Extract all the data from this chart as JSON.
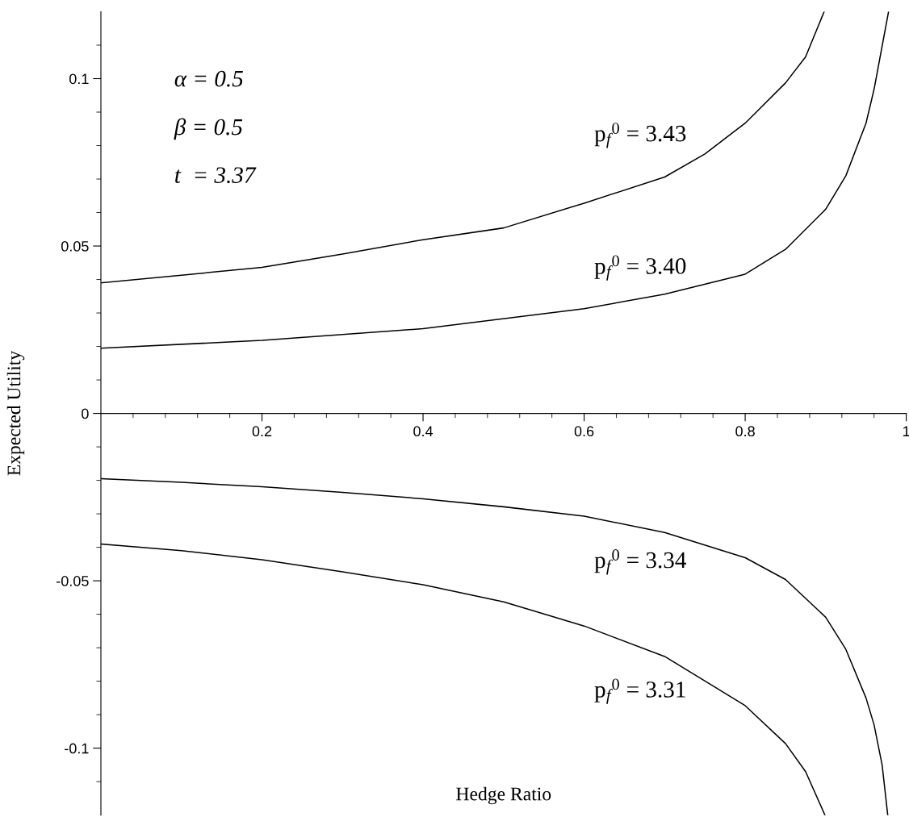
{
  "chart_data": {
    "type": "line",
    "xlabel": "Hedge Ratio",
    "ylabel": "Expected Utility",
    "xlim": [
      0,
      1
    ],
    "ylim": [
      -0.12,
      0.12
    ],
    "xticks": [
      {
        "value": 0.04,
        "label": null
      },
      {
        "value": 0.08,
        "label": null
      },
      {
        "value": 0.12,
        "label": null
      },
      {
        "value": 0.16,
        "label": null
      },
      0.2,
      {
        "value": 0.24,
        "label": null
      },
      {
        "value": 0.28,
        "label": null
      },
      {
        "value": 0.32,
        "label": null
      },
      {
        "value": 0.36,
        "label": null
      },
      0.4,
      {
        "value": 0.44,
        "label": null
      },
      {
        "value": 0.48,
        "label": null
      },
      {
        "value": 0.52,
        "label": null
      },
      {
        "value": 0.56,
        "label": null
      },
      0.6,
      {
        "value": 0.64,
        "label": null
      },
      {
        "value": 0.68,
        "label": null
      },
      {
        "value": 0.72,
        "label": null
      },
      {
        "value": 0.76,
        "label": null
      },
      0.8,
      {
        "value": 0.84,
        "label": null
      },
      {
        "value": 0.88,
        "label": null
      },
      {
        "value": 0.92,
        "label": null
      },
      {
        "value": 0.96,
        "label": null
      },
      1
    ],
    "yticks": [
      {
        "value": -0.11,
        "label": null
      },
      -0.1,
      {
        "value": -0.09,
        "label": null
      },
      {
        "value": -0.08,
        "label": null
      },
      {
        "value": -0.07,
        "label": null
      },
      {
        "value": -0.06,
        "label": null
      },
      -0.05,
      {
        "value": -0.04,
        "label": null
      },
      {
        "value": -0.03,
        "label": null
      },
      {
        "value": -0.02,
        "label": null
      },
      {
        "value": -0.01,
        "label": null
      },
      0,
      {
        "value": 0.01,
        "label": null
      },
      {
        "value": 0.02,
        "label": null
      },
      {
        "value": 0.03,
        "label": null
      },
      {
        "value": 0.04,
        "label": null
      },
      0.05,
      {
        "value": 0.06,
        "label": null
      },
      {
        "value": 0.07,
        "label": null
      },
      {
        "value": 0.08,
        "label": null
      },
      {
        "value": 0.09,
        "label": null
      },
      0.1,
      {
        "value": 0.11,
        "label": null
      }
    ],
    "grid": false,
    "legend": false,
    "marker": "none",
    "line_style": "solid",
    "series": [
      {
        "name": "p$_{f}$$^{0}$ = 3.43",
        "color": "#000000",
        "x": [
          0,
          0.1,
          0.2,
          0.3,
          0.4,
          0.5,
          0.6,
          0.7,
          0.75,
          0.8,
          0.85,
          0.875,
          0.898
        ],
        "values": [
          0.039,
          0.0413,
          0.0436,
          0.0476,
          0.0519,
          0.0554,
          0.0628,
          0.0706,
          0.0775,
          0.0867,
          0.0987,
          0.1065,
          0.12
        ]
      },
      {
        "name": "p$_{f}$$^{0}$ = 3.40",
        "color": "#000000",
        "x": [
          0,
          0.2,
          0.4,
          0.6,
          0.7,
          0.8,
          0.85,
          0.9,
          0.925,
          0.95,
          0.96,
          0.97,
          0.978
        ],
        "values": [
          0.0195,
          0.0218,
          0.0253,
          0.0313,
          0.0356,
          0.0416,
          0.049,
          0.061,
          0.071,
          0.0867,
          0.0968,
          0.1097,
          0.12
        ]
      },
      {
        "name": "p$_{f}$$^{0}$ = 3.34",
        "color": "#000000",
        "x": [
          0,
          0.1,
          0.2,
          0.3,
          0.4,
          0.5,
          0.6,
          0.7,
          0.8,
          0.85,
          0.9,
          0.925,
          0.95,
          0.96,
          0.97,
          0.977
        ],
        "values": [
          -0.0195,
          -0.0206,
          -0.0219,
          -0.0236,
          -0.0255,
          -0.0279,
          -0.0307,
          -0.0356,
          -0.0431,
          -0.0496,
          -0.0609,
          -0.0705,
          -0.085,
          -0.093,
          -0.105,
          -0.12
        ]
      },
      {
        "name": "p$_{f}$$^{0}$ = 3.31",
        "color": "#000000",
        "x": [
          0,
          0.1,
          0.2,
          0.3,
          0.4,
          0.5,
          0.6,
          0.7,
          0.8,
          0.85,
          0.875,
          0.899
        ],
        "values": [
          -0.039,
          -0.041,
          -0.0437,
          -0.0473,
          -0.0512,
          -0.0563,
          -0.0635,
          -0.0726,
          -0.0873,
          -0.0986,
          -0.107,
          -0.12
        ]
      }
    ],
    "annotations": [
      "α = 0.5",
      "β = 0.5",
      "t  = 3.37"
    ]
  }
}
